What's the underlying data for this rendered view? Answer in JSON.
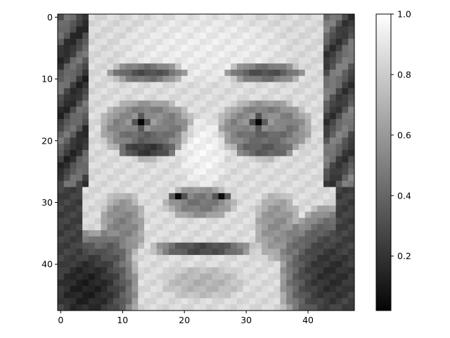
{
  "chart_data": {
    "type": "heatmap",
    "title": "",
    "xlabel": "",
    "ylabel": "",
    "colormap": "gray",
    "grid": false,
    "rows": 48,
    "cols": 48,
    "xlim": [
      -0.5,
      47.5
    ],
    "ylim": [
      47.5,
      -0.5
    ],
    "x_ticks": [
      0,
      10,
      20,
      30,
      40
    ],
    "y_ticks": [
      0,
      10,
      20,
      30,
      40
    ],
    "colorbar": {
      "range": [
        0.02,
        1.0
      ],
      "ticks": [
        0.2,
        0.4,
        0.6,
        0.8,
        1.0
      ],
      "tick_labels": [
        "0.2",
        "0.4",
        "0.6",
        "0.8",
        "1.0"
      ]
    },
    "grid_values_description_free": true,
    "image_model": {
      "background": [
        {
          "shape": "hair_left",
          "value": 0.25
        },
        {
          "shape": "hair_right",
          "value": 0.3
        }
      ],
      "features": [
        {
          "name": "face",
          "cx": 23,
          "cy": 24,
          "rx": 18,
          "ry": 27,
          "value": 0.86
        },
        {
          "name": "forehead",
          "cx": 23,
          "cy": 5,
          "rx": 14,
          "ry": 6,
          "value": 0.92
        },
        {
          "name": "brow-left",
          "cx": 14,
          "cy": 9,
          "rx": 7,
          "ry": 1.6,
          "value": 0.3
        },
        {
          "name": "brow-right",
          "cx": 33,
          "cy": 9,
          "rx": 7,
          "ry": 1.6,
          "value": 0.3
        },
        {
          "name": "socket-left",
          "cx": 14,
          "cy": 18,
          "rx": 8,
          "ry": 5,
          "value": 0.38
        },
        {
          "name": "socket-right",
          "cx": 33,
          "cy": 18,
          "rx": 8,
          "ry": 5,
          "value": 0.38
        },
        {
          "name": "eye-white-left",
          "cx": 13.5,
          "cy": 17,
          "rx": 4.5,
          "ry": 2,
          "value": 0.6
        },
        {
          "name": "eye-white-right",
          "cx": 32.5,
          "cy": 17,
          "rx": 4.5,
          "ry": 2,
          "value": 0.6
        },
        {
          "name": "pupil-left",
          "cx": 13,
          "cy": 17,
          "rx": 1.2,
          "ry": 1.2,
          "value": 0.05
        },
        {
          "name": "pupil-right",
          "cx": 32,
          "cy": 17,
          "rx": 1.2,
          "ry": 1.2,
          "value": 0.05
        },
        {
          "name": "under-eye-left",
          "cx": 14,
          "cy": 21.5,
          "rx": 5,
          "ry": 1.6,
          "value": 0.2
        },
        {
          "name": "under-eye-right",
          "cx": 33,
          "cy": 21.5,
          "rx": 5,
          "ry": 1.6,
          "value": 0.35
        },
        {
          "name": "nose-bridge",
          "cx": 23,
          "cy": 22,
          "rx": 4,
          "ry": 6,
          "value": 0.95
        },
        {
          "name": "nose",
          "cx": 22.5,
          "cy": 30,
          "rx": 6,
          "ry": 3,
          "value": 0.45
        },
        {
          "name": "nostril-left",
          "cx": 19,
          "cy": 29,
          "rx": 1.2,
          "ry": 0.9,
          "value": 0.08
        },
        {
          "name": "nostril-right",
          "cx": 26,
          "cy": 29,
          "rx": 1.2,
          "ry": 0.9,
          "value": 0.08
        },
        {
          "name": "cheek-shadow-left",
          "cx": 10,
          "cy": 34,
          "rx": 4,
          "ry": 6,
          "value": 0.5
        },
        {
          "name": "cheek-shadow-right",
          "cx": 35,
          "cy": 34,
          "rx": 4,
          "ry": 6,
          "value": 0.55
        },
        {
          "name": "mouth",
          "cx": 23,
          "cy": 37.5,
          "rx": 9,
          "ry": 1.2,
          "value": 0.22
        },
        {
          "name": "chin",
          "cx": 23,
          "cy": 43,
          "rx": 7,
          "ry": 3,
          "value": 0.7
        },
        {
          "name": "shirt-left",
          "cx": 4,
          "cy": 44,
          "rx": 9,
          "ry": 10,
          "value": 0.12
        },
        {
          "name": "shirt-right",
          "cx": 44,
          "cy": 42,
          "rx": 9,
          "ry": 12,
          "value": 0.18
        }
      ]
    }
  }
}
